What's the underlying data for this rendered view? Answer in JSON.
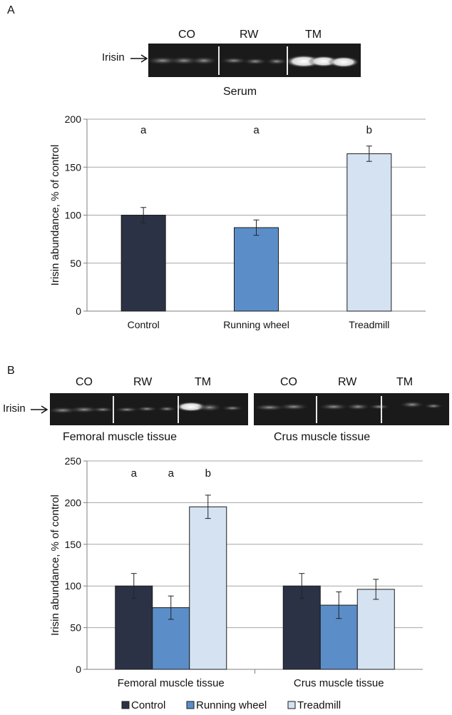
{
  "colors": {
    "control": "#2b3245",
    "running_wheel": "#5b8ec8",
    "treadmill": "#d5e2f2",
    "grid": "#a6a6a6",
    "axis": "#7f7f7f",
    "blot_bg": "#1a1a1a"
  },
  "panel_a": {
    "label": "A",
    "blot": {
      "lane_labels": [
        "CO",
        "RW",
        "TM"
      ],
      "marker_label": "Irisin",
      "caption": "Serum"
    }
  },
  "panel_b": {
    "label": "B",
    "blot_left": {
      "lane_labels": [
        "CO",
        "RW",
        "TM"
      ],
      "marker_label": "Irisin",
      "caption": "Femoral muscle tissue"
    },
    "blot_right": {
      "lane_labels": [
        "CO",
        "RW",
        "TM"
      ],
      "caption": "Crus muscle tissue"
    }
  },
  "chart_data": [
    {
      "type": "bar",
      "title": "",
      "xlabel": "",
      "ylabel": "Irisin abundance, % of control",
      "ylim": [
        0,
        200
      ],
      "yticks": [
        "0",
        "50",
        "100",
        "150",
        "200"
      ],
      "grid": true,
      "categories": [
        "Control",
        "Running wheel",
        "Treadmill"
      ],
      "values": [
        100,
        87,
        164
      ],
      "errors": [
        8,
        8,
        8
      ],
      "significance": [
        "a",
        "a",
        "b"
      ]
    },
    {
      "type": "bar",
      "title": "",
      "xlabel": "",
      "ylabel": "Irisin abundance, % of control",
      "ylim": [
        0,
        250
      ],
      "yticks": [
        "0",
        "50",
        "100",
        "150",
        "200",
        "250"
      ],
      "grid": true,
      "categories": [
        "Femoral muscle tissue",
        "Crus muscle tissue"
      ],
      "series": [
        {
          "name": "Control",
          "values": [
            100,
            100
          ],
          "errors": [
            15,
            15
          ]
        },
        {
          "name": "Running wheel",
          "values": [
            74,
            77
          ],
          "errors": [
            14,
            16
          ]
        },
        {
          "name": "Treadmill",
          "values": [
            195,
            96
          ],
          "errors": [
            14,
            12
          ]
        }
      ],
      "significance": [
        [
          "a",
          "a",
          "b"
        ],
        [
          "",
          "",
          ""
        ]
      ],
      "legend": {
        "position": "bottom",
        "entries": [
          "Control",
          "Running wheel",
          "Treadmill"
        ]
      }
    }
  ]
}
